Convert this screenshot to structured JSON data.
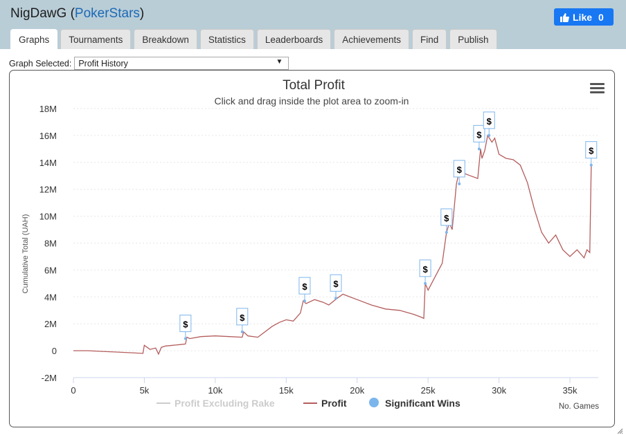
{
  "header": {
    "player": "NigDawG",
    "site": "PokerStars",
    "like_label": "Like",
    "like_count": "0"
  },
  "tabs": [
    "Graphs",
    "Tournaments",
    "Breakdown",
    "Statistics",
    "Leaderboards",
    "Achievements",
    "Find",
    "Publish"
  ],
  "graph_select": {
    "label": "Graph Selected:",
    "value": "Profit History"
  },
  "chart_data": {
    "type": "line",
    "title": "Total Profit",
    "subtitle": "Click and drag inside the plot area to zoom-in",
    "xlabel": "No. Games",
    "ylabel": "Cumulative Total (UAH)",
    "xlim": [
      0,
      37000
    ],
    "ylim": [
      -2000000,
      18000000
    ],
    "x_ticks": [
      "0",
      "5k",
      "10k",
      "15k",
      "20k",
      "25k",
      "30k",
      "35k"
    ],
    "y_ticks": [
      "-2M",
      "0",
      "2M",
      "4M",
      "6M",
      "8M",
      "10M",
      "12M",
      "14M",
      "16M",
      "18M"
    ],
    "grid": true,
    "legend_position": "bottom",
    "legend": [
      "Profit Excluding Rake",
      "Profit",
      "Significant Wins"
    ],
    "colors": {
      "profit": "#b45c5c",
      "excluding_rake": "#cccccc",
      "wins": "#7cb5ec"
    },
    "series": [
      {
        "name": "Profit",
        "x": [
          0,
          1000,
          2000,
          3000,
          4000,
          4900,
          5000,
          5400,
          5800,
          6000,
          6200,
          6500,
          7000,
          7500,
          7900,
          8000,
          8200,
          9000,
          10000,
          11000,
          11900,
          12000,
          12300,
          13000,
          14000,
          14500,
          15000,
          15500,
          16000,
          16200,
          16400,
          17000,
          17600,
          18000,
          18600,
          19000,
          20000,
          21000,
          22000,
          23000,
          24000,
          24500,
          24700,
          24800,
          25000,
          25500,
          26000,
          26300,
          26500,
          26700,
          27000,
          27200,
          27500,
          28000,
          28500,
          28700,
          28800,
          29000,
          29200,
          29500,
          29700,
          30000,
          30500,
          31000,
          31500,
          32000,
          32500,
          33000,
          33500,
          34000,
          34500,
          35000,
          35500,
          36000,
          36200,
          36400,
          36500
        ],
        "y": [
          0,
          0,
          -50000,
          -100000,
          -150000,
          -200000,
          400000,
          100000,
          200000,
          -250000,
          250000,
          350000,
          400000,
          450000,
          500000,
          1000000,
          900000,
          1050000,
          1100000,
          1050000,
          1000000,
          1400000,
          1100000,
          1000000,
          1800000,
          2100000,
          2300000,
          2200000,
          2800000,
          3700000,
          3500000,
          3800000,
          3600000,
          3400000,
          3900000,
          4200000,
          3800000,
          3400000,
          3100000,
          3000000,
          2700000,
          2500000,
          2400000,
          5000000,
          4500000,
          5500000,
          6500000,
          8800000,
          9500000,
          9000000,
          12400000,
          13300000,
          13200000,
          13000000,
          12800000,
          15000000,
          14300000,
          14900000,
          16000000,
          15500000,
          15800000,
          14600000,
          14300000,
          14200000,
          13800000,
          12500000,
          10500000,
          8800000,
          8000000,
          8600000,
          7500000,
          7000000,
          7500000,
          6900000,
          7500000,
          7300000,
          13800000
        ]
      }
    ],
    "significant_wins": [
      {
        "x": 7900,
        "y": 900000,
        "label": "$"
      },
      {
        "x": 11900,
        "y": 1400000,
        "label": "$"
      },
      {
        "x": 16300,
        "y": 3700000,
        "label": "$"
      },
      {
        "x": 18500,
        "y": 3900000,
        "label": "$"
      },
      {
        "x": 24800,
        "y": 5000000,
        "label": "$"
      },
      {
        "x": 26300,
        "y": 8800000,
        "label": "$"
      },
      {
        "x": 27200,
        "y": 12400000,
        "label": "$"
      },
      {
        "x": 28600,
        "y": 15000000,
        "label": "$"
      },
      {
        "x": 29300,
        "y": 16000000,
        "label": "$"
      },
      {
        "x": 36500,
        "y": 13800000,
        "label": "$"
      }
    ]
  }
}
